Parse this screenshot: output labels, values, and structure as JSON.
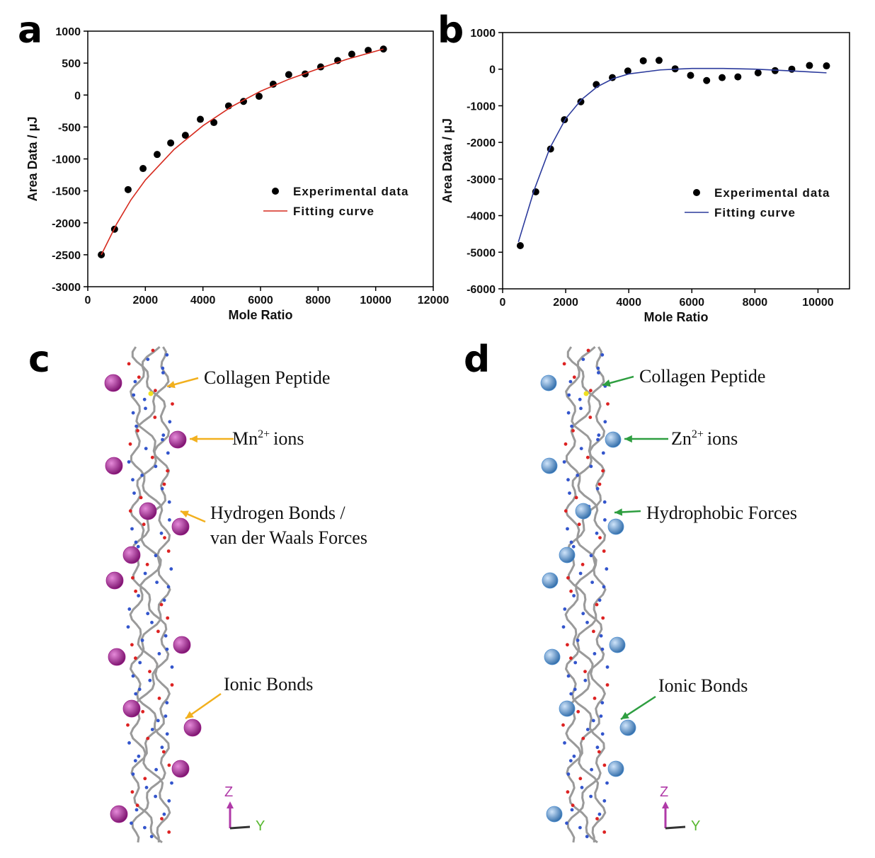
{
  "chart_data": [
    {
      "type": "scatter",
      "panel_label": "a",
      "xlabel": "Mole Ratio",
      "ylabel": "Area Data / μJ",
      "xlim": [
        0,
        12000
      ],
      "xticks": [
        0,
        2000,
        4000,
        6000,
        8000,
        10000,
        12000
      ],
      "ylim": [
        -3000,
        1000
      ],
      "yticks": [
        -3000,
        -2500,
        -2000,
        -1500,
        -1000,
        -500,
        0,
        500,
        1000
      ],
      "legend": "right",
      "series": [
        {
          "name": "Experimental data",
          "color": "#000000",
          "mode": "markers",
          "x": [
            470,
            930,
            1400,
            1920,
            2410,
            2880,
            3390,
            3910,
            4380,
            4890,
            5410,
            5950,
            6440,
            6980,
            7550,
            8090,
            8680,
            9170,
            9740,
            10270
          ],
          "values": [
            -2500,
            -2100,
            -1480,
            -1150,
            -930,
            -750,
            -630,
            -380,
            -430,
            -170,
            -100,
            -20,
            170,
            320,
            330,
            440,
            540,
            640,
            700,
            720
          ]
        },
        {
          "name": "Fitting curve",
          "color": "#d62a1e",
          "mode": "line",
          "x": [
            470,
            1000,
            1500,
            2000,
            3000,
            4000,
            5000,
            6000,
            7000,
            8000,
            9000,
            10270
          ],
          "values": [
            -2500,
            -2020,
            -1640,
            -1330,
            -850,
            -480,
            -180,
            60,
            250,
            410,
            560,
            720
          ]
        }
      ]
    },
    {
      "type": "scatter",
      "panel_label": "b",
      "xlabel": "Mole Ratio",
      "ylabel": "Area Data / μJ",
      "xlim": [
        0,
        11000
      ],
      "xticks": [
        0,
        2000,
        4000,
        6000,
        8000,
        10000
      ],
      "ylim": [
        -6000,
        1000
      ],
      "yticks": [
        -6000,
        -5000,
        -4000,
        -3000,
        -2000,
        -1000,
        0,
        1000
      ],
      "legend": "right",
      "series": [
        {
          "name": "Experimental data",
          "color": "#000000",
          "mode": "markers",
          "x": [
            560,
            1050,
            1520,
            1960,
            2480,
            2970,
            3480,
            3970,
            4460,
            4960,
            5470,
            5960,
            6470,
            6960,
            7460,
            8100,
            8640,
            9170,
            9730,
            10270
          ],
          "values": [
            -4820,
            -3350,
            -2180,
            -1380,
            -890,
            -420,
            -230,
            -50,
            230,
            240,
            10,
            -170,
            -310,
            -230,
            -210,
            -100,
            -40,
            0,
            100,
            90
          ]
        },
        {
          "name": "Fitting curve",
          "color": "#2b3a9c",
          "mode": "line",
          "x": [
            500,
            1000,
            1500,
            2000,
            2500,
            3000,
            3500,
            4000,
            5000,
            5500,
            6000,
            7000,
            8000,
            9000,
            10270
          ],
          "values": [
            -4720,
            -3300,
            -2150,
            -1350,
            -830,
            -480,
            -260,
            -130,
            -20,
            0,
            20,
            20,
            0,
            -40,
            -100
          ]
        }
      ]
    }
  ],
  "panels": [
    {
      "label": "c",
      "ion_color": "#9b1f8a",
      "arrow_color": "#f2b01e",
      "annotations": [
        {
          "text": "Collagen Peptide"
        },
        {
          "text": "Mn",
          "sup": "2+",
          "after": "ions"
        },
        {
          "lines": [
            "Hydrogen Bonds /",
            "van der Waals Forces"
          ]
        },
        {
          "text": "Ionic Bonds"
        }
      ],
      "axes": [
        "Z",
        "Y"
      ]
    },
    {
      "label": "d",
      "ion_color": "#4f8fd0",
      "arrow_color": "#2e9e40",
      "annotations": [
        {
          "text": "Collagen Peptide"
        },
        {
          "text": "Zn",
          "sup": "2+",
          "after": "ions"
        },
        {
          "text": "Hydrophobic Forces"
        },
        {
          "text": "Ionic Bonds"
        }
      ],
      "axes": [
        "Z",
        "Y"
      ]
    }
  ]
}
